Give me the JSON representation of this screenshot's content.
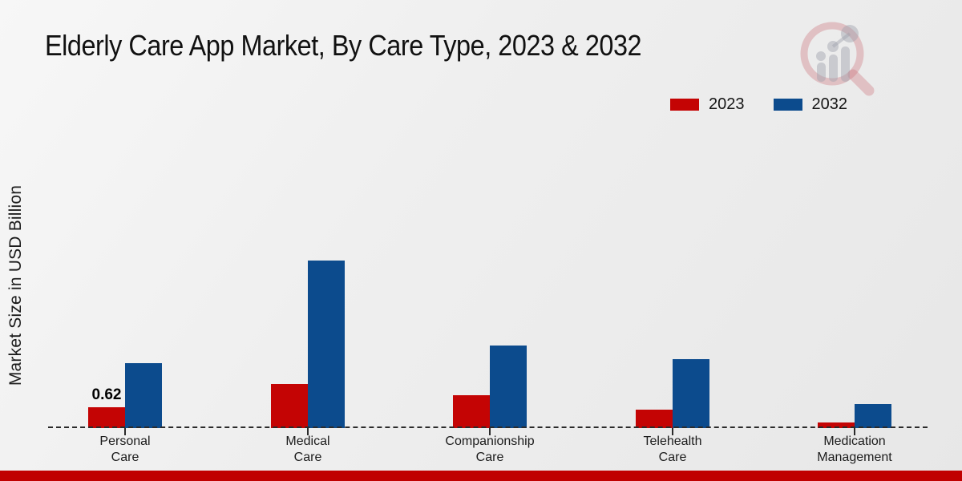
{
  "page": {
    "title": "Elderly Care App Market, By Care Type, 2023 & 2032",
    "y_axis_label": "Market Size in USD Billion"
  },
  "legend": {
    "items": [
      {
        "label": "2023",
        "color": "#c40404"
      },
      {
        "label": "2032",
        "color": "#0c4b8d"
      }
    ]
  },
  "footer": {
    "stripe_color": "#c00000"
  },
  "watermark": {
    "name": "magnifier-bar-chart-logo"
  },
  "chart_data": {
    "type": "bar",
    "title": "Elderly Care App Market, By Care Type, 2023 & 2032",
    "xlabel": "",
    "ylabel": "Market Size in USD Billion",
    "categories": [
      "Personal\nCare",
      "Medical\nCare",
      "Companionship\nCare",
      "Telehealth\nCare",
      "Medication\nManagement"
    ],
    "series": [
      {
        "name": "2023",
        "color": "#c40404",
        "values": [
          0.62,
          1.31,
          0.98,
          0.55,
          0.17
        ],
        "labels": [
          "0.62",
          "",
          "",
          "",
          ""
        ]
      },
      {
        "name": "2032",
        "color": "#0c4b8d",
        "values": [
          1.93,
          4.97,
          2.46,
          2.05,
          0.72
        ],
        "labels": [
          "",
          "",
          "",
          "",
          ""
        ]
      }
    ],
    "ylim": [
      0,
      5.5
    ],
    "grid": false,
    "y_axis_ticks_visible": false,
    "baseline_style": "dashed",
    "legend_position": "top-right"
  }
}
